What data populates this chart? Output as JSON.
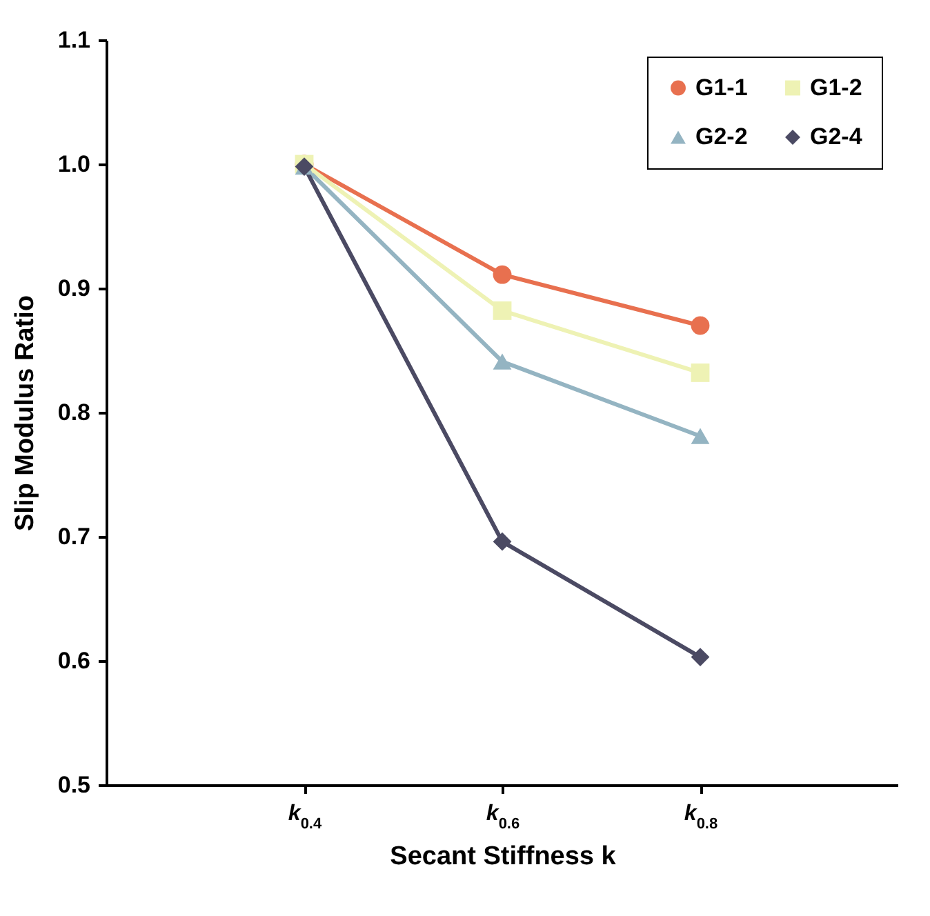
{
  "chart_data": {
    "type": "line",
    "xlabel": "Secant Stiffness  k",
    "ylabel": "Slip Modulus Ratio",
    "categories": [
      "k$_{0.4}$",
      "k$_{0.6}$",
      "k$_{0.8}$"
    ],
    "series": [
      {
        "name": "G1-1",
        "color": "#e8704f",
        "marker": "circle",
        "values": [
          1.0,
          0.911,
          0.87
        ]
      },
      {
        "name": "G1-2",
        "color": "#eef2b4",
        "marker": "square",
        "values": [
          1.0,
          0.882,
          0.832
        ]
      },
      {
        "name": "G2-2",
        "color": "#94b4c2",
        "marker": "triangle",
        "values": [
          0.998,
          0.841,
          0.781
        ]
      },
      {
        "name": "G2-4",
        "color": "#4b4a63",
        "marker": "diamond",
        "values": [
          0.998,
          0.696,
          0.603
        ]
      }
    ],
    "ylim": [
      0.5,
      1.1
    ],
    "yticks": [
      0.5,
      0.6,
      0.7,
      0.8,
      0.9,
      {
        "value": 1,
        "label": "1.0"
      },
      1.1
    ],
    "grid": false,
    "legend": "top right",
    "line_style": "solid"
  }
}
